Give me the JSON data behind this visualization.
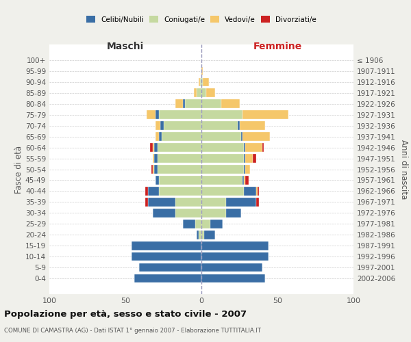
{
  "age_groups": [
    "0-4",
    "5-9",
    "10-14",
    "15-19",
    "20-24",
    "25-29",
    "30-34",
    "35-39",
    "40-44",
    "45-49",
    "50-54",
    "55-59",
    "60-64",
    "65-69",
    "70-74",
    "75-79",
    "80-84",
    "85-89",
    "90-94",
    "95-99",
    "100+"
  ],
  "birth_years": [
    "2002-2006",
    "1997-2001",
    "1992-1996",
    "1987-1991",
    "1982-1986",
    "1977-1981",
    "1972-1976",
    "1967-1971",
    "1962-1966",
    "1957-1961",
    "1952-1956",
    "1947-1951",
    "1942-1946",
    "1937-1941",
    "1932-1936",
    "1927-1931",
    "1922-1926",
    "1917-1921",
    "1912-1916",
    "1907-1911",
    "≤ 1906"
  ],
  "maschi": {
    "coniugati": [
      0,
      0,
      0,
      0,
      2,
      4,
      17,
      17,
      28,
      28,
      29,
      29,
      29,
      26,
      25,
      28,
      11,
      3,
      1,
      0,
      0
    ],
    "celibi": [
      44,
      41,
      46,
      46,
      1,
      8,
      15,
      18,
      7,
      2,
      2,
      2,
      2,
      2,
      2,
      2,
      1,
      0,
      0,
      0,
      0
    ],
    "vedovi": [
      0,
      0,
      0,
      0,
      0,
      0,
      0,
      0,
      0,
      0,
      1,
      1,
      1,
      2,
      3,
      6,
      5,
      2,
      1,
      0,
      0
    ],
    "divorziati": [
      0,
      0,
      0,
      0,
      0,
      0,
      0,
      2,
      2,
      0,
      1,
      0,
      2,
      0,
      0,
      0,
      0,
      0,
      0,
      0,
      0
    ]
  },
  "femmine": {
    "coniugate": [
      0,
      0,
      0,
      0,
      2,
      6,
      16,
      16,
      28,
      27,
      28,
      28,
      28,
      26,
      24,
      27,
      13,
      3,
      1,
      0,
      0
    ],
    "nubili": [
      42,
      40,
      44,
      44,
      7,
      8,
      10,
      20,
      8,
      1,
      1,
      1,
      1,
      1,
      1,
      0,
      0,
      0,
      0,
      0,
      0
    ],
    "vedove": [
      0,
      0,
      0,
      0,
      0,
      0,
      0,
      0,
      1,
      1,
      3,
      5,
      11,
      18,
      17,
      30,
      12,
      6,
      4,
      1,
      0
    ],
    "divorziate": [
      0,
      0,
      0,
      0,
      0,
      0,
      0,
      2,
      1,
      2,
      0,
      2,
      1,
      0,
      0,
      0,
      0,
      0,
      0,
      0,
      0
    ]
  },
  "colors": {
    "celibi": "#3a6ea5",
    "coniugati": "#c5d9a0",
    "vedovi": "#f5c76a",
    "divorziati": "#cc2222"
  },
  "xlim": 100,
  "title": "Popolazione per età, sesso e stato civile - 2007",
  "subtitle": "COMUNE DI CAMASTRA (AG) - Dati ISTAT 1° gennaio 2007 - Elaborazione TUTTITALIA.IT",
  "ylabel": "Fasce di età",
  "ylabel_right": "Anni di nascita",
  "xlabel_maschi": "Maschi",
  "xlabel_femmine": "Femmine",
  "bg_color": "#f0f0eb",
  "plot_bg": "#ffffff"
}
